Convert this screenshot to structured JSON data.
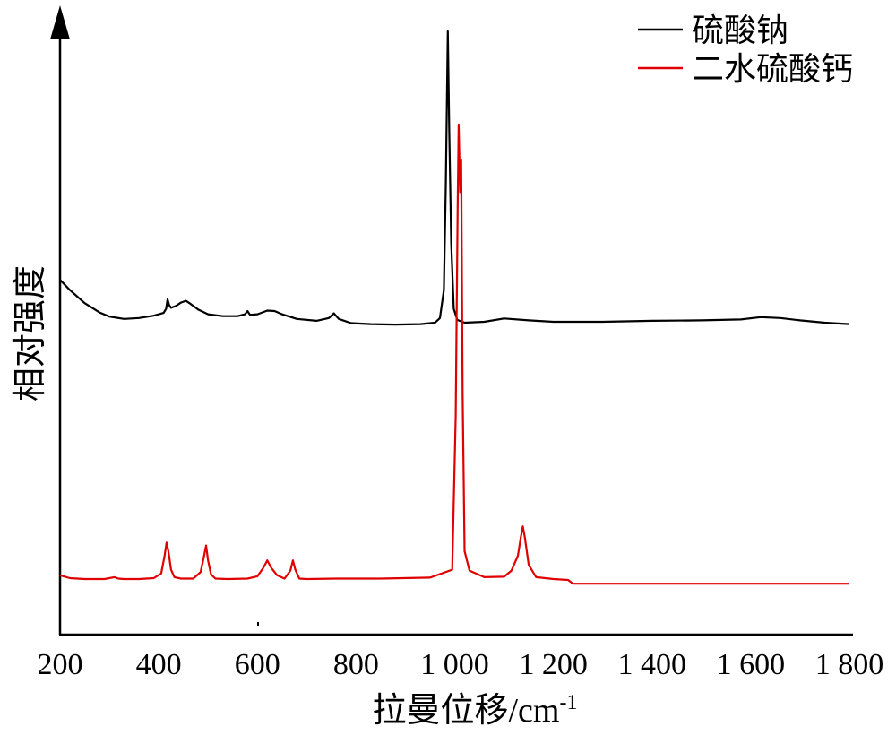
{
  "chart_data": {
    "type": "line",
    "xlabel": "拉曼位移/cm",
    "xlabel_sup": "-1",
    "ylabel": "相对强度",
    "xlim": [
      200,
      1800
    ],
    "ylim": [
      0,
      1.3
    ],
    "grid": false,
    "legend_position": "top-right",
    "x_ticks": [
      {
        "value": 200,
        "label": "200"
      },
      {
        "value": 400,
        "label": "400"
      },
      {
        "value": 600,
        "label": "600"
      },
      {
        "value": 800,
        "label": "800"
      },
      {
        "value": 1000,
        "label": "1 000"
      },
      {
        "value": 1200,
        "label": "1 200"
      },
      {
        "value": 1400,
        "label": "1 400"
      },
      {
        "value": 1600,
        "label": "1 600"
      },
      {
        "value": 1800,
        "label": "1 800"
      }
    ],
    "series": [
      {
        "name": "硫酸钠",
        "color": "#000000",
        "x": [
          200,
          220,
          250,
          280,
          300,
          330,
          360,
          390,
          410,
          415,
          418,
          421,
          425,
          435,
          445,
          455,
          465,
          480,
          500,
          530,
          560,
          575,
          580,
          585,
          600,
          620,
          635,
          650,
          680,
          720,
          745,
          755,
          765,
          790,
          830,
          880,
          930,
          960,
          970,
          978,
          982,
          986,
          989,
          993,
          998,
          1005,
          1020,
          1060,
          1100,
          1150,
          1200,
          1300,
          1400,
          1500,
          1580,
          1620,
          1660,
          1700,
          1750,
          1800
        ],
        "y": [
          0.742,
          0.72,
          0.692,
          0.672,
          0.663,
          0.658,
          0.66,
          0.665,
          0.671,
          0.68,
          0.7,
          0.688,
          0.682,
          0.686,
          0.693,
          0.697,
          0.69,
          0.678,
          0.668,
          0.664,
          0.664,
          0.668,
          0.675,
          0.667,
          0.668,
          0.676,
          0.675,
          0.668,
          0.658,
          0.654,
          0.66,
          0.67,
          0.658,
          0.649,
          0.647,
          0.646,
          0.647,
          0.65,
          0.66,
          0.72,
          0.95,
          1.275,
          1.06,
          0.82,
          0.68,
          0.656,
          0.65,
          0.652,
          0.659,
          0.655,
          0.652,
          0.652,
          0.654,
          0.655,
          0.657,
          0.662,
          0.66,
          0.655,
          0.65,
          0.647
        ]
      },
      {
        "name": "二水硫酸钙",
        "color": "#e00000",
        "x": [
          200,
          220,
          250,
          290,
          310,
          318,
          330,
          360,
          390,
          405,
          412,
          416,
          420,
          425,
          432,
          445,
          470,
          485,
          492,
          496,
          500,
          506,
          515,
          540,
          580,
          600,
          612,
          620,
          628,
          640,
          655,
          667,
          672,
          677,
          685,
          700,
          760,
          850,
          950,
          995,
          1002,
          1006,
          1008,
          1011,
          1013,
          1016,
          1020,
          1030,
          1060,
          1100,
          1115,
          1128,
          1134,
          1138,
          1142,
          1150,
          1165,
          1200,
          1230,
          1240,
          1300,
          1500,
          1700,
          1800
        ],
        "y": [
          0.108,
          0.102,
          0.1,
          0.1,
          0.104,
          0.101,
          0.1,
          0.1,
          0.102,
          0.112,
          0.15,
          0.178,
          0.158,
          0.12,
          0.104,
          0.101,
          0.101,
          0.115,
          0.15,
          0.172,
          0.14,
          0.11,
          0.101,
          0.1,
          0.101,
          0.106,
          0.124,
          0.14,
          0.124,
          0.108,
          0.101,
          0.118,
          0.14,
          0.12,
          0.101,
          0.1,
          0.101,
          0.101,
          0.103,
          0.12,
          0.45,
          0.9,
          1.075,
          0.93,
          1.0,
          0.5,
          0.16,
          0.118,
          0.104,
          0.105,
          0.118,
          0.15,
          0.19,
          0.213,
          0.19,
          0.13,
          0.104,
          0.1,
          0.098,
          0.09,
          0.09,
          0.09,
          0.09,
          0.09
        ]
      }
    ]
  }
}
